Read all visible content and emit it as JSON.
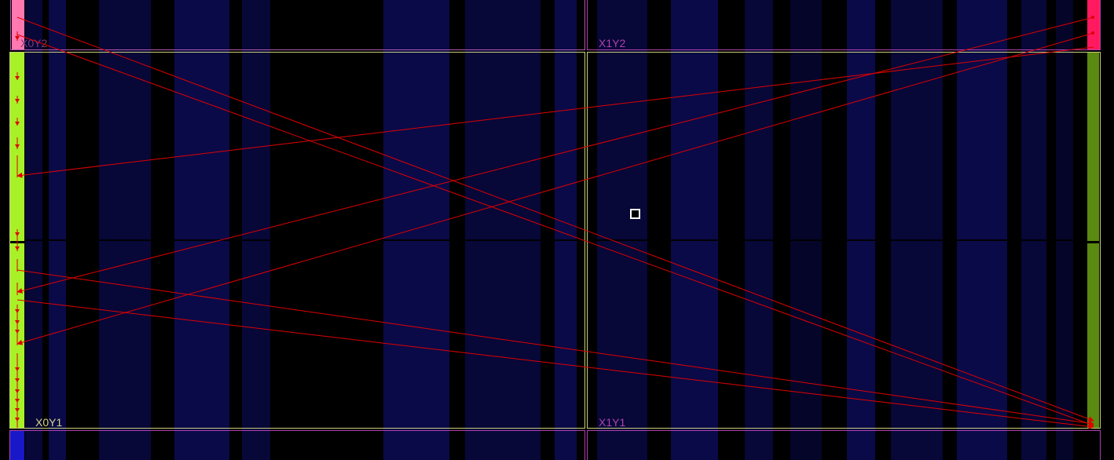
{
  "regions": [
    {
      "id": "X0Y2",
      "label": "X0Y2",
      "label_color": "#7a3a7a",
      "border": "#b05ab0"
    },
    {
      "id": "X1Y2",
      "label": "X1Y2",
      "label_color": "#b040b0",
      "border": "#b040b0"
    },
    {
      "id": "X0Y1",
      "label": "X0Y1",
      "label_color": "#d4d48a",
      "border": "#c8d07a"
    },
    {
      "id": "X1Y1",
      "label": "X1Y1",
      "label_color": "#b040b0",
      "border": "#c8d07a"
    },
    {
      "id": "X0Y0",
      "label": "",
      "label_color": "#b040b0",
      "border": "#b040b0"
    },
    {
      "id": "X1Y0",
      "label": "",
      "label_color": "#b040b0",
      "border": "#b040b0"
    }
  ],
  "colors": {
    "background": "#000000",
    "column_dark": "#05052a",
    "column_mid": "#070738",
    "column_light": "#0a0a48",
    "net": "#e00000",
    "io_left_top": "#ff78b0",
    "io_left_mid": "#a8f028",
    "io_left_bottom": "#1818c8",
    "io_right_top": "#ff1a60",
    "io_right_mid": "#5a8a10",
    "selection": "#ffffff"
  },
  "icons": {
    "selected_cell": "selected-cell-square-icon",
    "net_arrow": "arrowhead-icon"
  }
}
